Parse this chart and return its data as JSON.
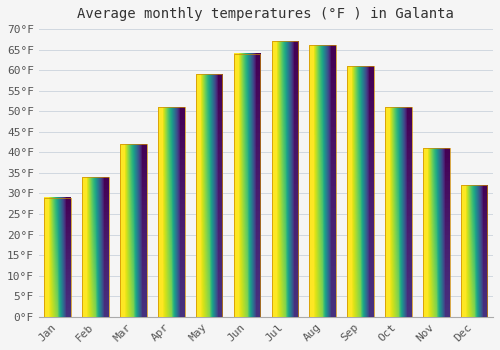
{
  "title": "Average monthly temperatures (°F ) in Galanta",
  "months": [
    "Jan",
    "Feb",
    "Mar",
    "Apr",
    "May",
    "Jun",
    "Jul",
    "Aug",
    "Sep",
    "Oct",
    "Nov",
    "Dec"
  ],
  "values": [
    29,
    34,
    42,
    51,
    59,
    64,
    67,
    66,
    61,
    51,
    41,
    32
  ],
  "bar_color_bottom": "#FFD740",
  "bar_color_top": "#FFA020",
  "bar_edge_color": "#CC8800",
  "bar_edge_width": 0.5,
  "ylim": [
    0,
    70
  ],
  "yticks": [
    0,
    5,
    10,
    15,
    20,
    25,
    30,
    35,
    40,
    45,
    50,
    55,
    60,
    65,
    70
  ],
  "ytick_labels": [
    "0°F",
    "5°F",
    "10°F",
    "15°F",
    "20°F",
    "25°F",
    "30°F",
    "35°F",
    "40°F",
    "45°F",
    "50°F",
    "55°F",
    "60°F",
    "65°F",
    "70°F"
  ],
  "background_color": "#f5f5f5",
  "plot_bg_color": "#f5f5f5",
  "grid_color": "#d0d8e0",
  "title_fontsize": 10,
  "tick_fontsize": 8,
  "bar_width": 0.7,
  "gradient_steps": 100
}
